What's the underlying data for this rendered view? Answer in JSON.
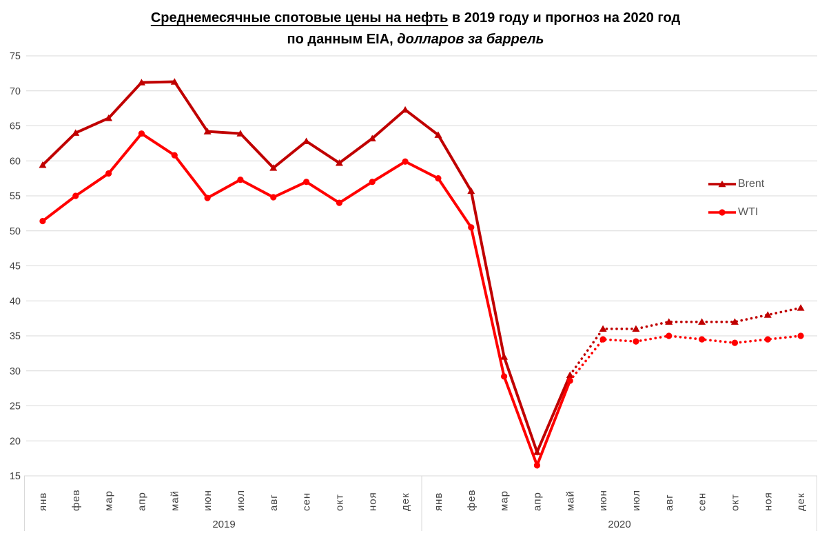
{
  "title": {
    "line1_underlined": "Среднемесячные спотовые цены на нефть",
    "line1_rest": " в 2019 году и прогноз на 2020 год",
    "line2_lead": "по данным EIA,",
    "line2_italic": " долларов за баррель"
  },
  "legend": {
    "position": "middle-right",
    "items": [
      {
        "label": "Brent",
        "marker": "triangle"
      },
      {
        "label": "WTI",
        "marker": "circle"
      }
    ]
  },
  "colors": {
    "brent": "#C00000",
    "wti": "#FF0000",
    "gridline": "#D9D9D9",
    "axis_text": "#404040",
    "legend_text": "#595959",
    "title_text": "#000000",
    "background": "#FFFFFF"
  },
  "chart_data": {
    "type": "line",
    "title": "Среднемесячные спотовые цены на нефть в 2019 году и прогноз на 2020 год по данным EIA, долларов за баррель",
    "months": [
      "янв",
      "фев",
      "мар",
      "апр",
      "май",
      "июн",
      "июл",
      "авг",
      "сен",
      "окт",
      "ноя",
      "дек"
    ],
    "years": [
      "2019",
      "2020"
    ],
    "ylim": [
      15,
      75
    ],
    "ytick_step": 5,
    "yticks": [
      75,
      70,
      65,
      60,
      55,
      50,
      45,
      40,
      35,
      30,
      25,
      20,
      15
    ],
    "grid": "horizontal",
    "legend_position": "middle-right",
    "forecast_style": "dotted line from май 2020 onward (forecast)",
    "series": [
      {
        "name": "Brent",
        "marker": "triangle",
        "color_key": "brent",
        "solid_until_index": 16,
        "values": [
          59.4,
          64.0,
          66.1,
          71.2,
          71.3,
          64.2,
          63.9,
          59.0,
          62.8,
          59.7,
          63.2,
          67.3,
          63.7,
          55.7,
          32.0,
          18.4,
          29.4,
          36.0,
          36.0,
          37.0,
          37.0,
          37.0,
          38.0,
          39.0
        ]
      },
      {
        "name": "WTI",
        "marker": "circle",
        "color_key": "wti",
        "solid_until_index": 16,
        "values": [
          51.4,
          55.0,
          58.2,
          63.9,
          60.8,
          54.7,
          57.3,
          54.8,
          57.0,
          54.0,
          57.0,
          59.9,
          57.5,
          50.5,
          29.2,
          16.5,
          28.6,
          34.5,
          34.2,
          35.0,
          34.5,
          34.0,
          34.5,
          35.0
        ]
      }
    ]
  }
}
